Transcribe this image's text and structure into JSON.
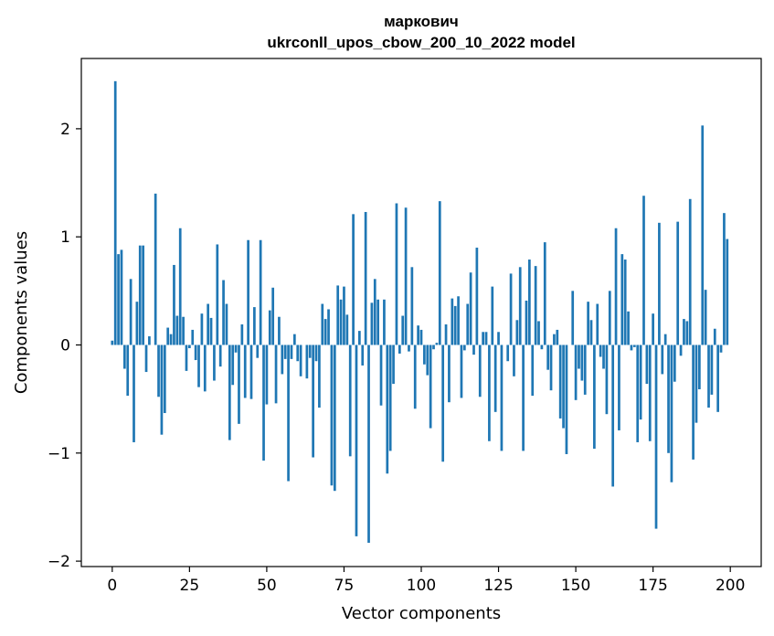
{
  "chart_data": {
    "type": "bar",
    "title": "маркович",
    "subtitle": "ukrconll_upos_cbow_200_10_2022 model",
    "xlabel": "Vector components",
    "ylabel": "Components values",
    "xlim": [
      -10,
      210
    ],
    "ylim": [
      -2.05,
      2.65
    ],
    "xticks": [
      0,
      25,
      50,
      75,
      100,
      125,
      150,
      175,
      200
    ],
    "yticks": [
      -2,
      -1,
      0,
      1,
      2
    ],
    "xtick_labels": [
      "0",
      "25",
      "50",
      "75",
      "100",
      "125",
      "150",
      "175",
      "200"
    ],
    "ytick_labels": [
      "−2",
      "−1",
      "0",
      "1",
      "2"
    ],
    "bar_color": "#1f77b4",
    "grid": false,
    "x": [
      0,
      1,
      2,
      3,
      4,
      5,
      6,
      7,
      8,
      9,
      10,
      11,
      12,
      13,
      14,
      15,
      16,
      17,
      18,
      19,
      20,
      21,
      22,
      23,
      24,
      25,
      26,
      27,
      28,
      29,
      30,
      31,
      32,
      33,
      34,
      35,
      36,
      37,
      38,
      39,
      40,
      41,
      42,
      43,
      44,
      45,
      46,
      47,
      48,
      49,
      50,
      51,
      52,
      53,
      54,
      55,
      56,
      57,
      58,
      59,
      60,
      61,
      62,
      63,
      64,
      65,
      66,
      67,
      68,
      69,
      70,
      71,
      72,
      73,
      74,
      75,
      76,
      77,
      78,
      79,
      80,
      81,
      82,
      83,
      84,
      85,
      86,
      87,
      88,
      89,
      90,
      91,
      92,
      93,
      94,
      95,
      96,
      97,
      98,
      99,
      100,
      101,
      102,
      103,
      104,
      105,
      106,
      107,
      108,
      109,
      110,
      111,
      112,
      113,
      114,
      115,
      116,
      117,
      118,
      119,
      120,
      121,
      122,
      123,
      124,
      125,
      126,
      127,
      128,
      129,
      130,
      131,
      132,
      133,
      134,
      135,
      136,
      137,
      138,
      139,
      140,
      141,
      142,
      143,
      144,
      145,
      146,
      147,
      148,
      149,
      150,
      151,
      152,
      153,
      154,
      155,
      156,
      157,
      158,
      159,
      160,
      161,
      162,
      163,
      164,
      165,
      166,
      167,
      168,
      169,
      170,
      171,
      172,
      173,
      174,
      175,
      176,
      177,
      178,
      179,
      180,
      181,
      182,
      183,
      184,
      185,
      186,
      187,
      188,
      189,
      190,
      191,
      192,
      193,
      194,
      195,
      196,
      197,
      198,
      199
    ],
    "values": [
      0.04,
      2.44,
      0.84,
      0.88,
      -0.22,
      -0.47,
      0.61,
      -0.9,
      0.4,
      0.92,
      0.92,
      -0.25,
      0.08,
      0.0,
      1.4,
      -0.48,
      -0.83,
      -0.63,
      0.16,
      0.1,
      0.74,
      0.27,
      1.08,
      0.26,
      -0.24,
      -0.03,
      0.14,
      -0.14,
      -0.39,
      0.29,
      -0.43,
      0.38,
      0.25,
      -0.33,
      0.93,
      -0.2,
      0.6,
      0.38,
      -0.88,
      -0.37,
      -0.07,
      -0.73,
      0.19,
      -0.49,
      0.97,
      -0.5,
      0.35,
      -0.12,
      0.97,
      -1.07,
      -0.55,
      0.32,
      0.53,
      -0.54,
      0.26,
      -0.27,
      -0.13,
      -1.26,
      -0.13,
      0.1,
      -0.15,
      -0.29,
      0.0,
      -0.31,
      -0.12,
      -1.04,
      -0.15,
      -0.58,
      0.38,
      0.24,
      0.33,
      -1.3,
      -1.35,
      0.55,
      0.42,
      0.54,
      0.28,
      -1.03,
      1.21,
      -1.77,
      0.13,
      -0.19,
      1.23,
      -1.83,
      0.39,
      0.61,
      0.42,
      -0.56,
      0.42,
      -1.19,
      -0.98,
      -0.36,
      1.31,
      -0.08,
      0.27,
      1.27,
      -0.06,
      0.72,
      -0.59,
      0.18,
      0.14,
      -0.18,
      -0.28,
      -0.77,
      -0.04,
      0.02,
      1.33,
      -1.08,
      0.19,
      -0.53,
      0.43,
      0.36,
      0.45,
      -0.49,
      -0.05,
      0.38,
      0.67,
      -0.09,
      0.9,
      -0.48,
      0.12,
      0.12,
      -0.89,
      0.54,
      -0.62,
      0.12,
      -0.98,
      0.0,
      -0.15,
      0.66,
      -0.29,
      0.23,
      0.72,
      -0.98,
      0.41,
      0.79,
      -0.47,
      0.73,
      0.22,
      -0.04,
      0.95,
      -0.23,
      -0.42,
      0.1,
      0.14,
      -0.68,
      -0.77,
      -1.01,
      0.0,
      0.5,
      -0.51,
      -0.22,
      -0.33,
      -0.46,
      0.4,
      0.23,
      -0.96,
      0.38,
      -0.11,
      -0.22,
      -0.64,
      0.5,
      -1.31,
      1.08,
      -0.79,
      0.84,
      0.79,
      0.31,
      -0.05,
      -0.02,
      -0.9,
      -0.69,
      1.38,
      -0.36,
      -0.89,
      0.29,
      -1.7,
      1.13,
      -0.27,
      0.1,
      -1.0,
      -1.27,
      -0.34,
      1.14,
      -0.1,
      0.24,
      0.22,
      1.35,
      -1.06,
      -0.72,
      -0.41,
      2.03,
      0.51,
      -0.58,
      -0.46,
      0.15,
      -0.62,
      -0.07,
      1.22,
      0.98
    ]
  }
}
